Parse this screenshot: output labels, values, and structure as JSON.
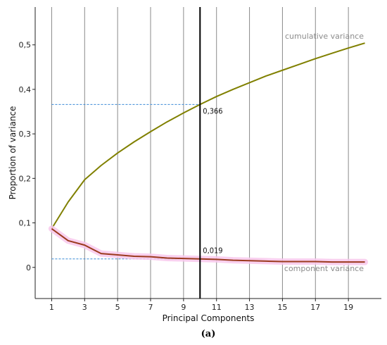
{
  "chart_data": {
    "type": "line",
    "xlabel": "Principal Components",
    "ylabel": "Proportion of variance",
    "caption": "(a)",
    "xlim": [
      0,
      21
    ],
    "ylim": [
      -0.07,
      0.585
    ],
    "x_ticks": [
      1,
      3,
      5,
      7,
      9,
      11,
      13,
      15,
      17,
      19
    ],
    "x_gridlines": [
      1,
      3,
      5,
      7,
      9,
      11,
      13,
      15,
      17,
      19
    ],
    "y_ticks": [
      0,
      0.1,
      0.2,
      0.3,
      0.4,
      0.5
    ],
    "y_tick_labels": [
      "0",
      "0,1",
      "0,2",
      "0,3",
      "0,4",
      "0,5"
    ],
    "grid": "vertical",
    "series": [
      {
        "name": "cumulative variance",
        "color": "#808000",
        "x": [
          1,
          2,
          3,
          4,
          5,
          6,
          7,
          8,
          9,
          10,
          11,
          12,
          13,
          14,
          15,
          16,
          17,
          18,
          19,
          20
        ],
        "values": [
          0.087,
          0.147,
          0.197,
          0.229,
          0.257,
          0.282,
          0.305,
          0.327,
          0.347,
          0.366,
          0.384,
          0.4,
          0.415,
          0.43,
          0.443,
          0.456,
          0.469,
          0.481,
          0.493,
          0.504
        ]
      },
      {
        "name": "component variance",
        "color": "#9b3a1e",
        "band_color": "#f8c8ec",
        "x": [
          1,
          2,
          3,
          4,
          5,
          6,
          7,
          8,
          9,
          10,
          11,
          12,
          13,
          14,
          15,
          16,
          17,
          18,
          19,
          20
        ],
        "values": [
          0.087,
          0.06,
          0.05,
          0.031,
          0.028,
          0.025,
          0.024,
          0.021,
          0.02,
          0.019,
          0.018,
          0.016,
          0.015,
          0.014,
          0.013,
          0.013,
          0.013,
          0.012,
          0.012,
          0.012
        ]
      }
    ],
    "marker": {
      "x": 10,
      "annotations": [
        {
          "text": "0,366",
          "y": 0.366,
          "color": "#3a8ad6"
        },
        {
          "text": "0,019",
          "y": 0.019,
          "color": "#3a8ad6"
        }
      ]
    }
  }
}
